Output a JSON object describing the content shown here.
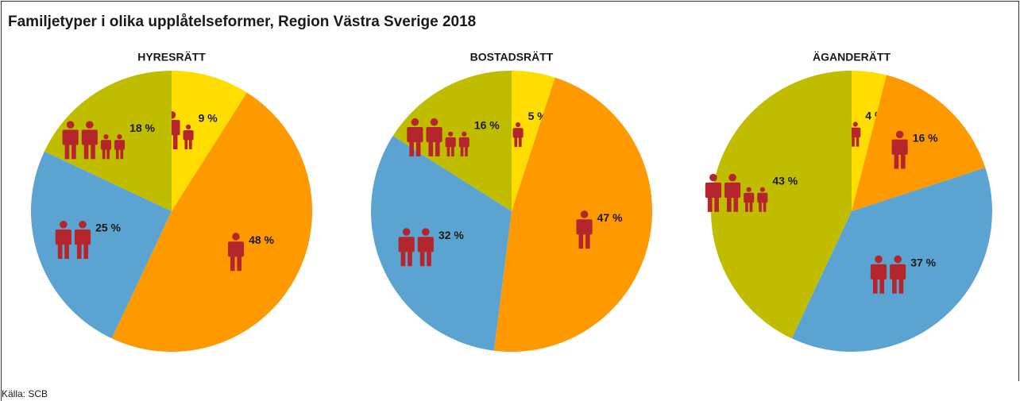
{
  "title": "Familjetyper i olika upplåtelseformer, Region Västra Sverige 2018",
  "source": "Källa: SCB",
  "chart_data": [
    {
      "type": "pie",
      "title": "HYRESRÄTT",
      "values": [
        9,
        48,
        25,
        18
      ],
      "value_labels": [
        "9 %",
        "48 %",
        "25 %",
        "18 %"
      ],
      "colors": [
        "#ffdd00",
        "#ff9900",
        "#5ba3d0",
        "#c0bc00"
      ]
    },
    {
      "type": "pie",
      "title": "BOSTADSRÄTT",
      "values": [
        5,
        47,
        32,
        16
      ],
      "value_labels": [
        "5 %",
        "47 %",
        "32 %",
        "16 %"
      ],
      "colors": [
        "#ffdd00",
        "#ff9900",
        "#5ba3d0",
        "#c0bc00"
      ]
    },
    {
      "type": "pie",
      "title": "ÄGANDERÄTT",
      "values": [
        4,
        16,
        37,
        43
      ],
      "value_labels": [
        "4 %",
        "16 %",
        "37 %",
        "43 %"
      ],
      "colors": [
        "#ffdd00",
        "#ff9900",
        "#5ba3d0",
        "#c0bc00"
      ]
    }
  ]
}
